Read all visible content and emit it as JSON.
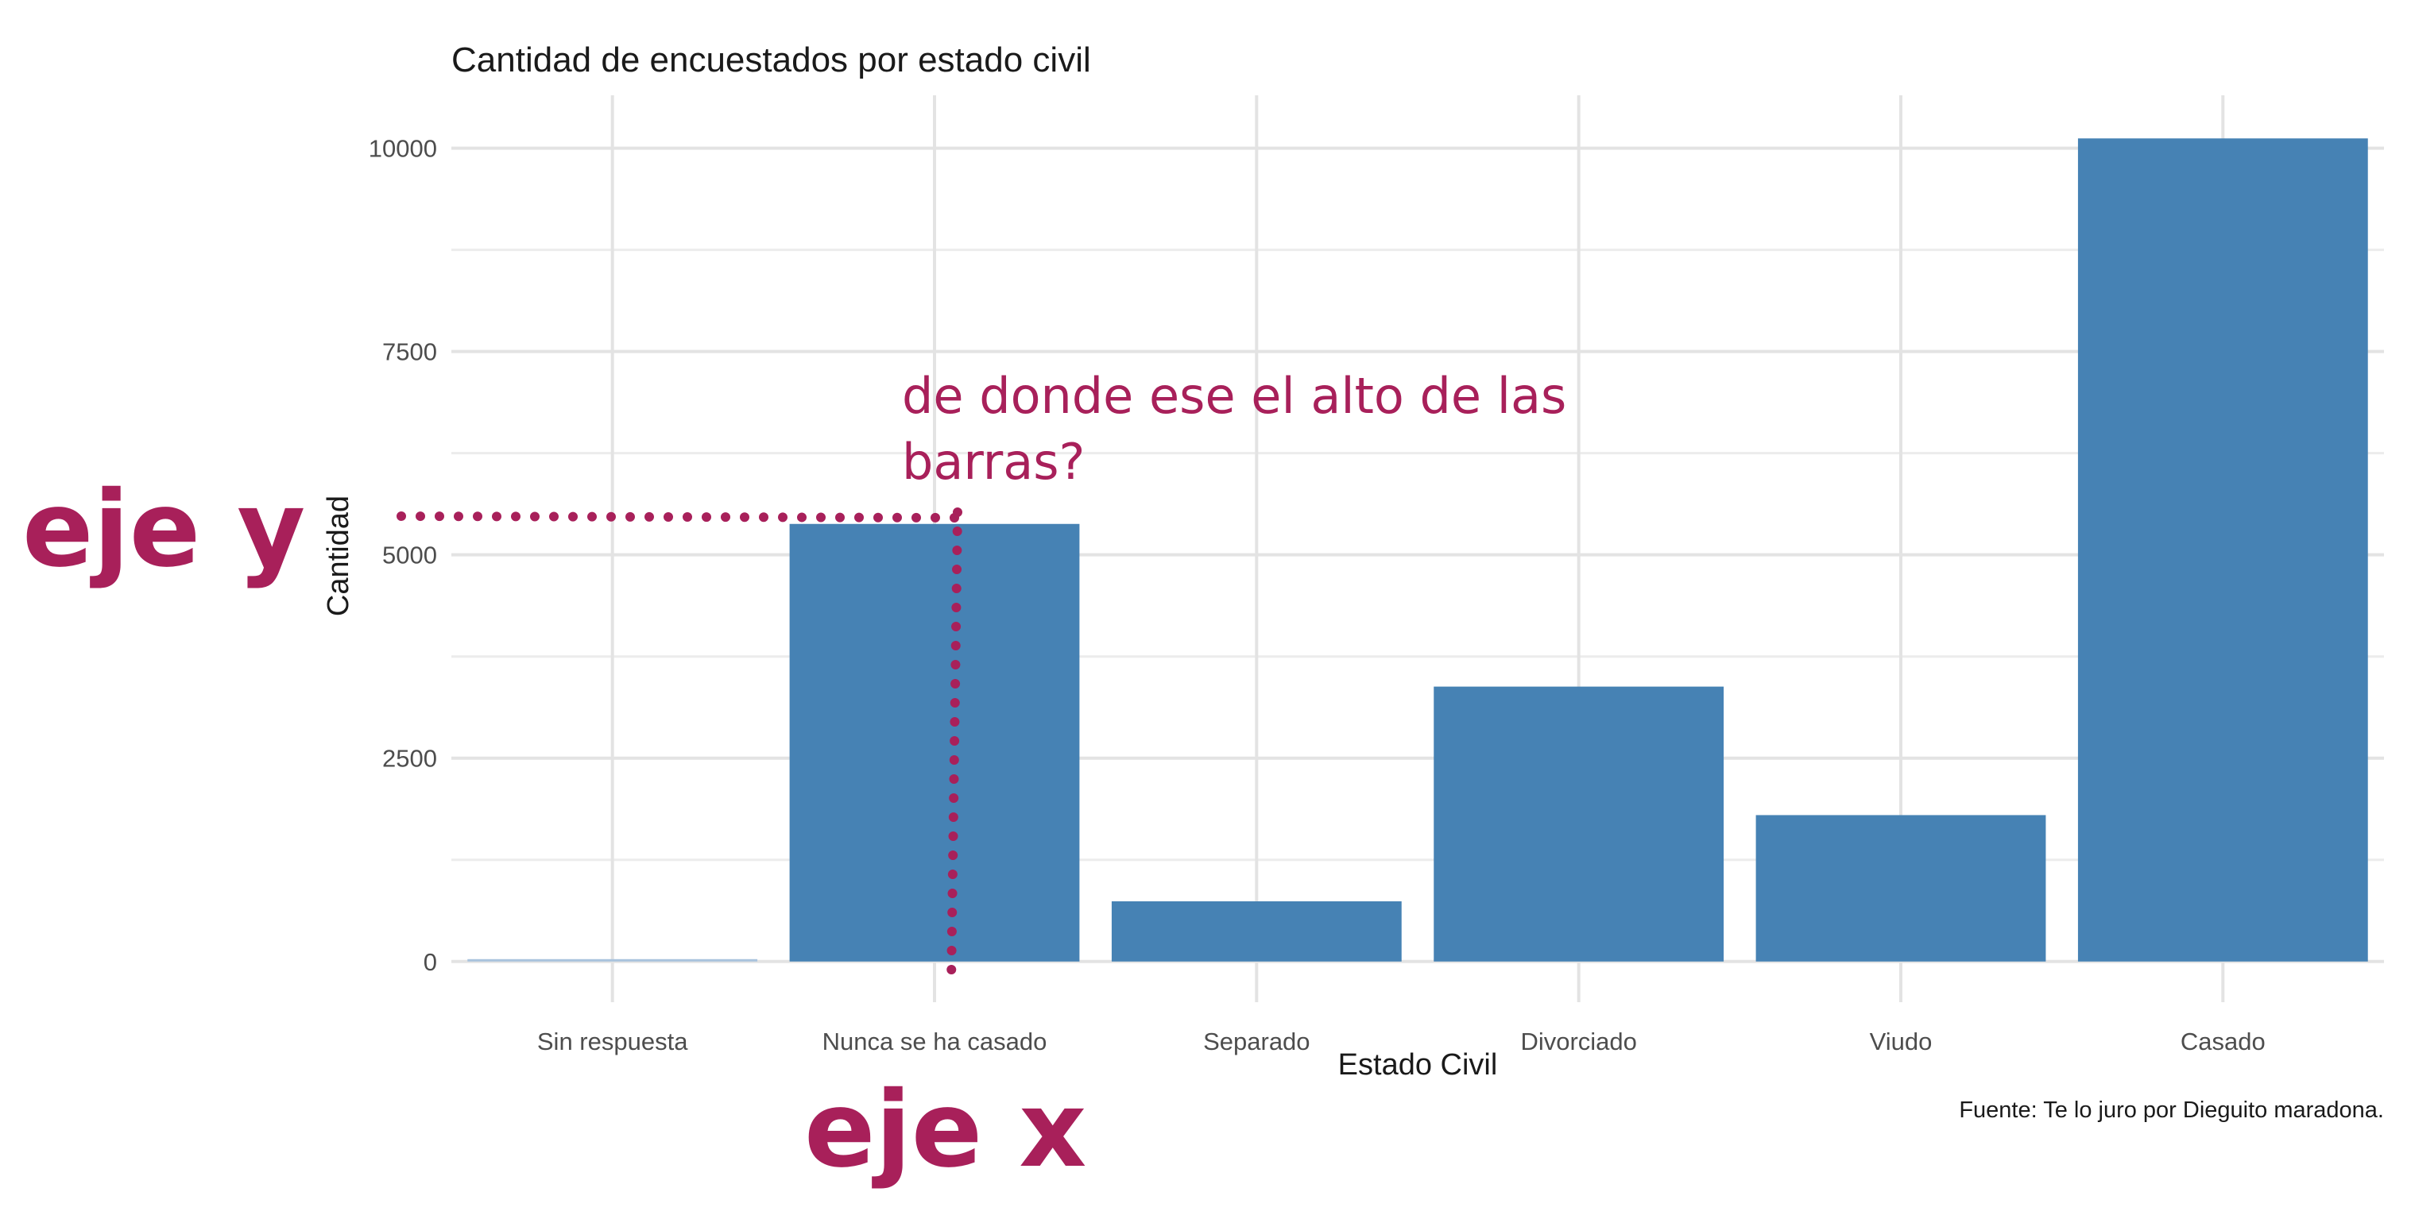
{
  "chart_data": {
    "type": "bar",
    "title": "Cantidad de encuestados por estado civil",
    "xlabel": "Estado Civil",
    "ylabel": "Cantidad",
    "categories": [
      "Sin respuesta",
      "Nunca se ha casado",
      "Separado",
      "Divorciado",
      "Viudo",
      "Casado"
    ],
    "values": [
      20,
      5380,
      740,
      3380,
      1800,
      10120
    ],
    "ylim": [
      -500,
      10650
    ],
    "yticks": [
      0,
      2500,
      5000,
      7500,
      10000
    ],
    "ytick_labels": [
      "0",
      "2500",
      "5000",
      "7500",
      "10000"
    ],
    "caption": "Fuente: Te lo juro por Dieguito maradona.",
    "grid": true,
    "legend": "none",
    "bar_color": "#4682b4",
    "highlighted_bar_color": "#a9c3dd"
  },
  "annotations": {
    "note_line1": "de donde ese el alto de las",
    "note_line2": "barras?",
    "y_axis_label": "eje y",
    "x_axis_label": "eje x",
    "color": "#a8205a"
  }
}
